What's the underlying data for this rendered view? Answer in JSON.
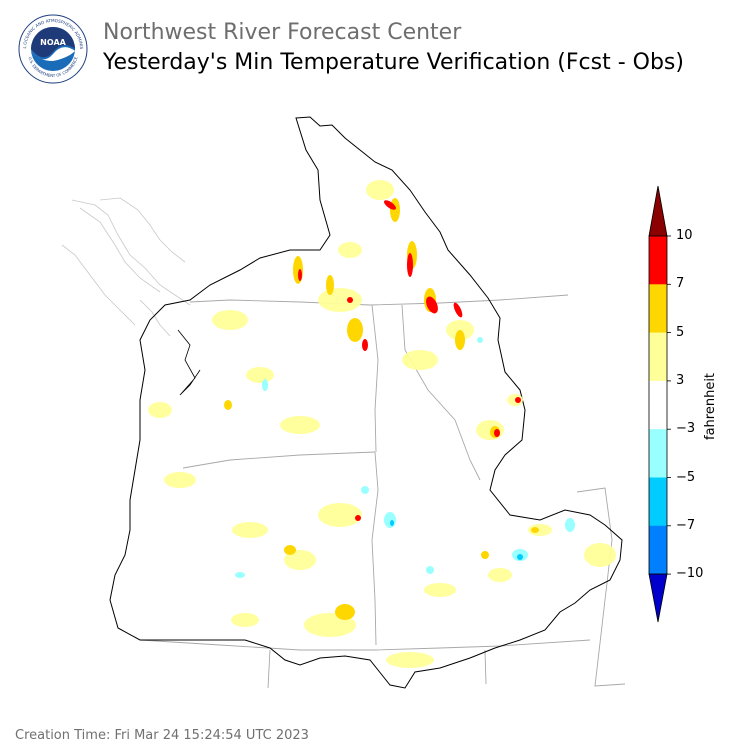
{
  "header": {
    "org_title": "Northwest River Forecast Center",
    "main_title": "Yesterday's Min Temperature Verification (Fcst - Obs)"
  },
  "logo": {
    "text": "NOAA",
    "ring_text": "NATIONAL OCEANIC AND ATMOSPHERIC ADMINISTRATION",
    "ring_text_bottom": "U.S. DEPARTMENT OF COMMERCE",
    "icon": "noaa-logo"
  },
  "legend": {
    "unit": "fahrenheit",
    "ticks": [
      "10",
      "7",
      "5",
      "3",
      "−3",
      "−5",
      "−7",
      "−10"
    ],
    "bins": [
      {
        "range": "> 10",
        "color": "#8b0000"
      },
      {
        "range": "7 to 10",
        "color": "#ff0000"
      },
      {
        "range": "5 to 7",
        "color": "#ffd700"
      },
      {
        "range": "3 to 5",
        "color": "#ffff99"
      },
      {
        "range": "-3 to 3",
        "color": "#ffffff"
      },
      {
        "range": "-5 to -3",
        "color": "#99ffff"
      },
      {
        "range": "-7 to -5",
        "color": "#00ccff"
      },
      {
        "range": "-10 to -7",
        "color": "#0080ff"
      },
      {
        "range": "< -10",
        "color": "#0000cc"
      }
    ]
  },
  "footer": {
    "creation_time": "Creation Time: Fri Mar 24 15:24:54 UTC 2023"
  }
}
